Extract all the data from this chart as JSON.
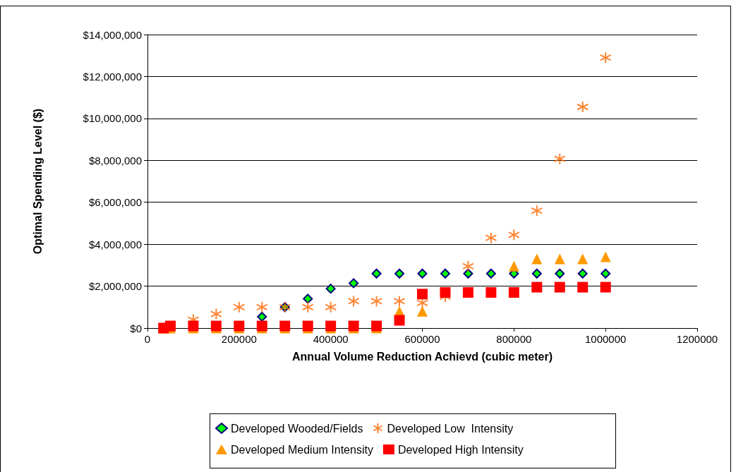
{
  "chart_data": {
    "type": "scatter",
    "xlabel": "Annual Volume Reduction Achievd (cubic meter)",
    "ylabel": "Optimal Spending Level ($)",
    "xlim": [
      0,
      1200000
    ],
    "xticks": [
      0,
      200000,
      400000,
      600000,
      800000,
      1000000,
      1200000
    ],
    "ylim": [
      0,
      14000000
    ],
    "yticks": [
      {
        "value": 0,
        "label": "$0"
      },
      {
        "value": 2000000,
        "label": "$2,000,000"
      },
      {
        "value": 4000000,
        "label": "$4,000,000"
      },
      {
        "value": 6000000,
        "label": "$6,000,000"
      },
      {
        "value": 8000000,
        "label": "$8,000,000"
      },
      {
        "value": 10000000,
        "label": "$10,000,000"
      },
      {
        "value": 12000000,
        "label": "$12,000,000"
      },
      {
        "value": 14000000,
        "label": "$14,000,000"
      }
    ],
    "x": [
      35000,
      50000,
      100000,
      150000,
      200000,
      250000,
      300000,
      350000,
      400000,
      450000,
      500000,
      550000,
      600000,
      650000,
      700000,
      750000,
      800000,
      850000,
      900000,
      950000,
      1000000
    ],
    "grid": "y",
    "legend": "bottom",
    "series": [
      {
        "name": "Developed Wooded/Fields",
        "color": "#00ff00",
        "marker": "diamond",
        "values": [
          null,
          null,
          null,
          null,
          null,
          540000,
          1000000,
          1400000,
          1880000,
          2140000,
          2600000,
          2600000,
          2600000,
          2600000,
          2600000,
          2600000,
          2600000,
          2600000,
          2600000,
          2600000,
          2600000
        ]
      },
      {
        "name": "Developed Low  Intensity",
        "color": "#ff6600",
        "marker": "cross",
        "values": [
          0,
          0,
          400000,
          670000,
          1000000,
          1000000,
          1000000,
          1000000,
          1000000,
          1280000,
          1280000,
          1280000,
          1200000,
          1500000,
          2950000,
          4300000,
          4450000,
          5600000,
          8070000,
          10550000,
          12900000
        ]
      },
      {
        "name": "Developed Medium Intensity",
        "color": "#ff9900",
        "marker": "triangle",
        "values": [
          0,
          0,
          0,
          0,
          0,
          0,
          0,
          0,
          0,
          0,
          0,
          800000,
          800000,
          null,
          null,
          null,
          2950000,
          3300000,
          3300000,
          3300000,
          3400000
        ]
      },
      {
        "name": "Developed High Intensity",
        "color": "#ff0000",
        "marker": "square",
        "values": [
          0,
          100000,
          100000,
          100000,
          100000,
          100000,
          100000,
          100000,
          100000,
          100000,
          100000,
          370000,
          1620000,
          1700000,
          1700000,
          1700000,
          1700000,
          1950000,
          1950000,
          1950000,
          1950000
        ]
      }
    ]
  }
}
